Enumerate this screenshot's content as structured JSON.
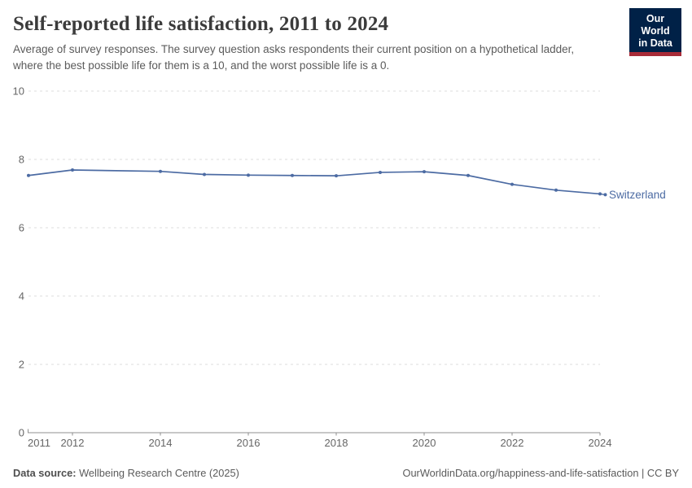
{
  "header": {
    "title": "Self-reported life satisfaction, 2011 to 2024",
    "subtitle": "Average of survey responses. The survey question asks respondents their current position on a hypothetical ladder, where the best possible life for them is a 10, and the worst possible life is a 0.",
    "logo": {
      "line1": "Our World",
      "line2": "in Data",
      "bg_color": "#002147",
      "stripe_color": "#a82b38"
    }
  },
  "chart_data": {
    "type": "line",
    "title": "Self-reported life satisfaction, 2011 to 2024",
    "xlabel": "",
    "ylabel": "",
    "xlim": [
      2011,
      2024
    ],
    "ylim": [
      0,
      10
    ],
    "xticks": [
      2011,
      2012,
      2014,
      2016,
      2018,
      2020,
      2022,
      2024
    ],
    "yticks": [
      0,
      2,
      4,
      6,
      8,
      10
    ],
    "grid": "horizontal-dashed",
    "legend_position": "end-of-line-label",
    "series": [
      {
        "name": "Switzerland",
        "color": "#4c6ba3",
        "years": [
          2011,
          2012,
          2014,
          2015,
          2016,
          2017,
          2018,
          2019,
          2020,
          2021,
          2022,
          2023,
          2024
        ],
        "values": [
          7.53,
          7.69,
          7.65,
          7.56,
          7.54,
          7.53,
          7.52,
          7.62,
          7.64,
          7.53,
          7.27,
          7.1,
          6.99
        ]
      }
    ],
    "note": "no data point for 2013",
    "colors": {
      "grid": "#dddddd",
      "axis": "#8f8f8f",
      "tick_label": "#666666"
    }
  },
  "footer": {
    "datasource_label": "Data source:",
    "datasource_value": " Wellbeing Research Centre (2025)",
    "attribution": "OurWorldinData.org/happiness-and-life-satisfaction | CC BY"
  }
}
